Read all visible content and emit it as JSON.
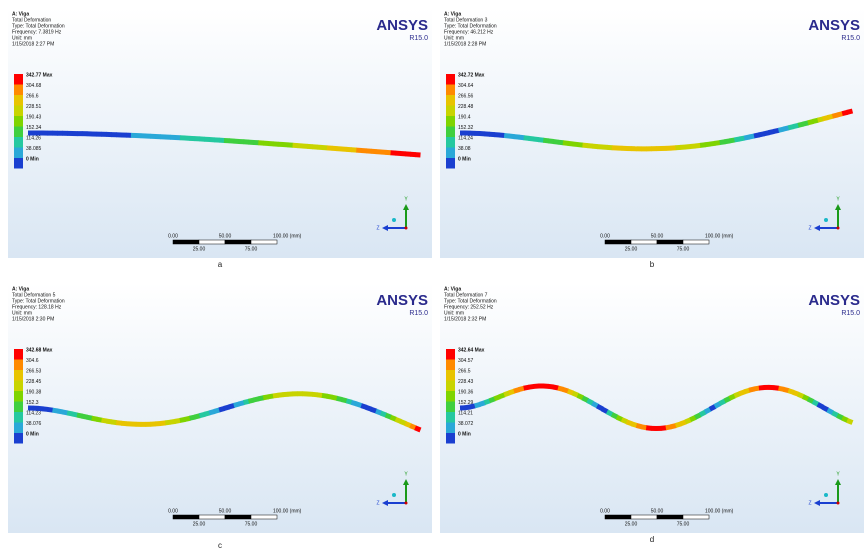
{
  "panels": [
    {
      "header": [
        "A: Viga",
        "Total Deformation",
        "Type: Total Deformation",
        "Frequency: 7.3819 Hz",
        "Unit: mm",
        "1/15/2018 2:27 PM"
      ],
      "logo": "ANSYS",
      "version": "R15.0",
      "legend": [
        "342.77 Max",
        "304.68",
        "266.6",
        "228.51",
        "190.43",
        "152.34",
        "114.26",
        "38.085",
        "0 Min"
      ],
      "scale_top": [
        "0.00",
        "50.00",
        "100.00 (mm)"
      ],
      "scale_bottom": [
        "25.00",
        "75.00"
      ],
      "triad": [
        "Y",
        "Z"
      ],
      "caption": "a"
    },
    {
      "header": [
        "A: Viga",
        "Total Deformation 3",
        "Type: Total Deformation",
        "Frequency: 46.212 Hz",
        "Unit: mm",
        "1/15/2018 2:28 PM"
      ],
      "logo": "ANSYS",
      "version": "R15.0",
      "legend": [
        "342.72 Max",
        "304.64",
        "266.56",
        "228.48",
        "190.4",
        "152.32",
        "114.24",
        "38.08",
        "0 Min"
      ],
      "scale_top": [
        "0.00",
        "50.00",
        "100.00 (mm)"
      ],
      "scale_bottom": [
        "25.00",
        "75.00"
      ],
      "triad": [
        "Y",
        "Z"
      ],
      "caption": "b"
    },
    {
      "header": [
        "A: Viga",
        "Total Deformation 5",
        "Type: Total Deformation",
        "Frequency: 128.18 Hz",
        "Unit: mm",
        "1/15/2018 2:30 PM"
      ],
      "logo": "ANSYS",
      "version": "R15.0",
      "legend": [
        "342.68 Max",
        "304.6",
        "266.53",
        "228.45",
        "190.38",
        "152.3",
        "114.23",
        "38.076",
        "0 Min"
      ],
      "scale_top": [
        "0.00",
        "50.00",
        "100.00 (mm)"
      ],
      "scale_bottom": [
        "25.00",
        "75.00"
      ],
      "triad": [
        "Y",
        "Z"
      ],
      "caption": "c"
    },
    {
      "header": [
        "A: Viga",
        "Total Deformation 7",
        "Type: Total Deformation",
        "Frequency: 252.52 Hz",
        "Unit: mm",
        "1/15/2018 2:32 PM"
      ],
      "logo": "ANSYS",
      "version": "R15.0",
      "legend": [
        "342.64 Max",
        "304.57",
        "266.5",
        "228.43",
        "190.36",
        "152.29",
        "114.21",
        "38.072",
        "0 Min"
      ],
      "scale_top": [
        "0.00",
        "50.00",
        "100.00 (mm)"
      ],
      "scale_bottom": [
        "25.00",
        "75.00"
      ],
      "triad": [
        "Y",
        "Z"
      ],
      "caption": "d"
    }
  ]
}
